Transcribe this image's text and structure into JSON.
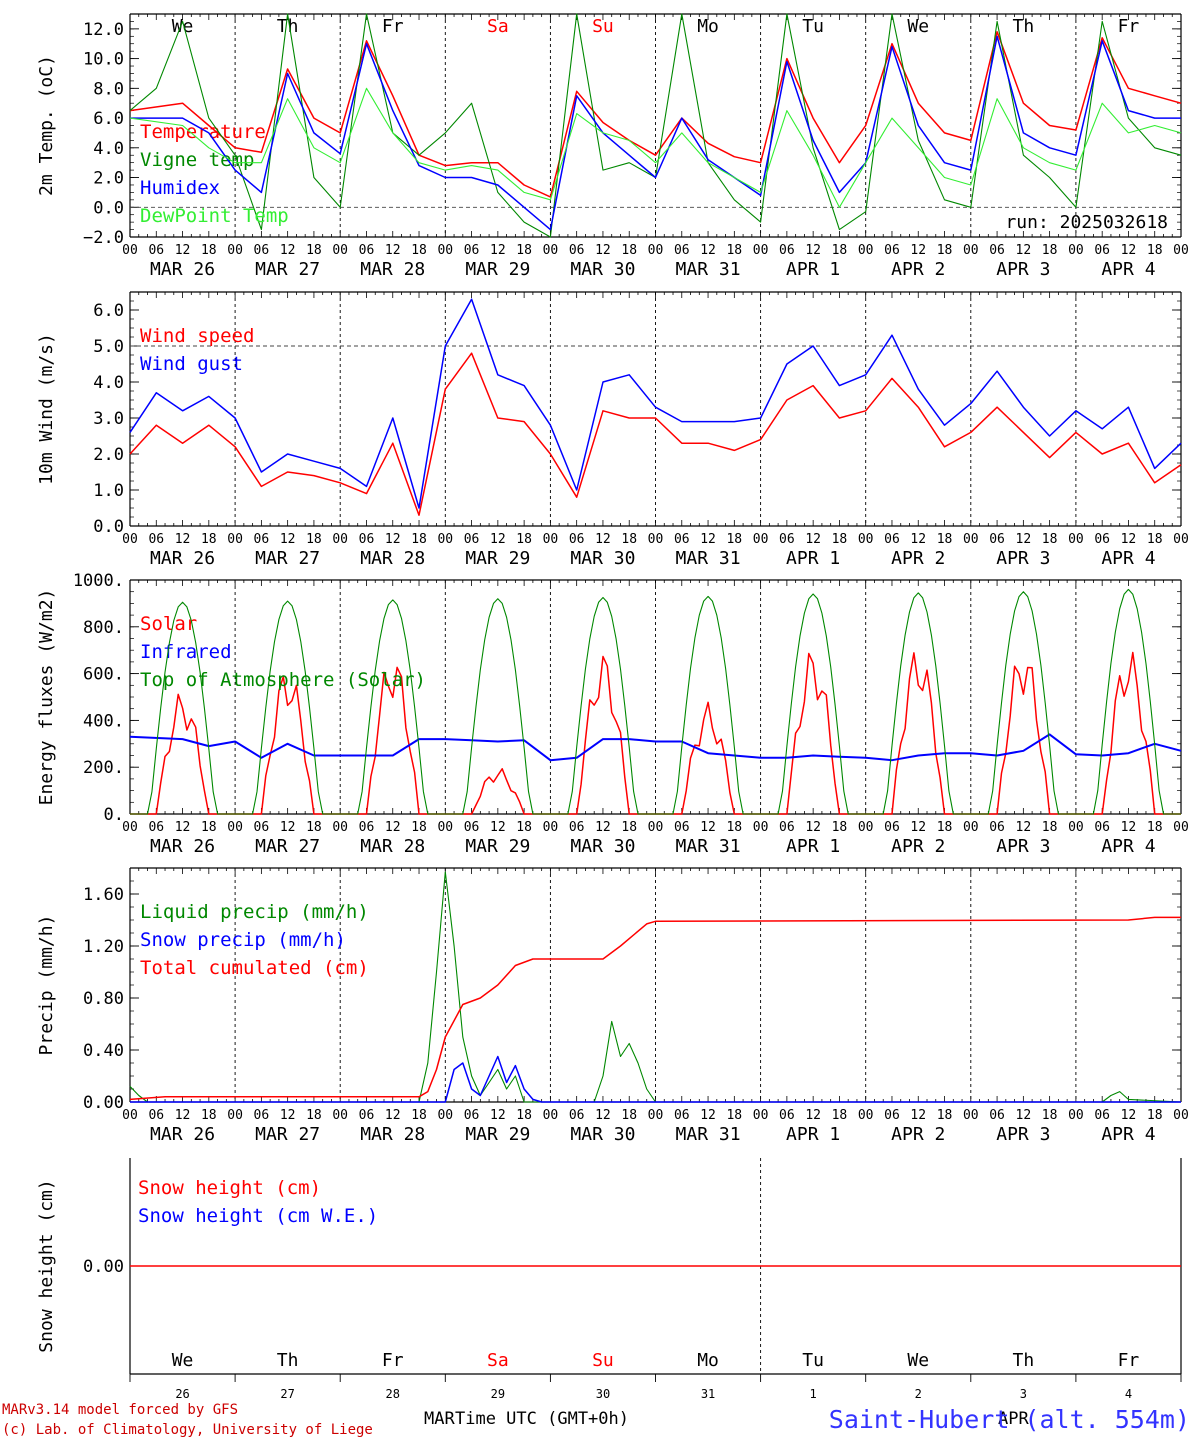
{
  "meta": {
    "run": "run: 2025032618",
    "credit_line1": "MARv3.14 model forced by GFS",
    "credit_line2": "(c) Lab. of Climatology, University of Liege",
    "station": "Saint-Hubert (alt. 554m)",
    "xlabel": "Time UTC (GMT+0h)",
    "month_overlap_label": "MAR",
    "month_overlap_label2": "APR"
  },
  "time_axis": {
    "hour_ticks": [
      "00",
      "06",
      "12",
      "18"
    ],
    "days": [
      "MAR 26",
      "MAR 27",
      "MAR 28",
      "MAR 29",
      "MAR 30",
      "MAR 31",
      "APR  1",
      "APR  2",
      "APR  3",
      "APR  4"
    ],
    "weekdays": [
      "We",
      "Th",
      "Fr",
      "Sa",
      "Su",
      "Mo",
      "Tu",
      "We",
      "Th",
      "Fr"
    ],
    "weekend_flags": [
      false,
      false,
      false,
      true,
      true,
      false,
      false,
      false,
      false,
      false
    ],
    "day_numbers": [
      "26",
      "27",
      "28",
      "29",
      "30",
      "31",
      "1",
      "2",
      "3",
      "4"
    ],
    "x_range_hours": [
      0,
      240
    ]
  },
  "colors": {
    "red": "#ff0000",
    "green": "#008800",
    "blue": "#0000ff",
    "lightgreen": "#33ee33",
    "axis": "#000000",
    "weekday": "#000000",
    "weekend": "#ff0000",
    "station": "#3333ff",
    "credit": "#cc0000"
  },
  "chart_data": [
    {
      "id": "temp",
      "type": "line",
      "ylabel": "2m Temp. (oC)",
      "ylim": [
        -2,
        13
      ],
      "yticks": [
        -2,
        0,
        2,
        4,
        6,
        8,
        10,
        12
      ],
      "ytick_labels": [
        "−2.0",
        "0.0",
        "2.0",
        "4.0",
        "6.0",
        "8.0",
        "10.0",
        "12.0"
      ],
      "ref_line": 0,
      "series": [
        {
          "name": "Temperature",
          "color": "red",
          "x": [
            0,
            12,
            18,
            24,
            30,
            36,
            42,
            48,
            54,
            60,
            66,
            72,
            78,
            84,
            90,
            96,
            102,
            108,
            114,
            120,
            126,
            132,
            138,
            144,
            150,
            156,
            162,
            168,
            174,
            180,
            186,
            192,
            198,
            204,
            210,
            216,
            222,
            228,
            234,
            240
          ],
          "y": [
            6.5,
            7.0,
            5.5,
            4.0,
            3.7,
            9.3,
            6.0,
            5.0,
            11.2,
            7.5,
            3.5,
            2.8,
            3.0,
            3.0,
            1.5,
            0.7,
            7.8,
            5.7,
            4.5,
            3.5,
            6.0,
            4.3,
            3.4,
            3.0,
            10.0,
            6.0,
            3.0,
            5.5,
            11.0,
            7.0,
            5.0,
            4.5,
            11.8,
            7.0,
            5.5,
            5.2,
            11.4,
            8.0,
            7.5,
            7.0
          ]
        },
        {
          "name": "Vigne temp",
          "color": "green",
          "x": [
            0,
            6,
            12,
            18,
            24,
            30,
            36,
            42,
            48,
            54,
            60,
            66,
            72,
            78,
            84,
            90,
            96,
            102,
            108,
            114,
            120,
            126,
            132,
            138,
            144,
            150,
            156,
            162,
            168,
            174,
            180,
            186,
            192,
            198,
            204,
            210,
            216,
            222,
            228,
            234,
            240
          ],
          "y": [
            6.5,
            8.0,
            12.5,
            6.0,
            3.5,
            -1.5,
            13.0,
            2.0,
            0.0,
            13.0,
            5.0,
            3.5,
            5.0,
            7.0,
            1.0,
            -1.0,
            -2.0,
            13.0,
            2.5,
            3.0,
            2.0,
            13.0,
            3.0,
            0.5,
            -1.0,
            13.0,
            4.0,
            -1.5,
            -0.3,
            13.0,
            4.5,
            0.5,
            0.0,
            12.5,
            3.5,
            2.0,
            0.0,
            12.5,
            6.0,
            4.0,
            3.5
          ]
        },
        {
          "name": "Humidex",
          "color": "blue",
          "x": [
            0,
            12,
            18,
            24,
            30,
            36,
            42,
            48,
            54,
            60,
            66,
            72,
            78,
            84,
            90,
            96,
            102,
            108,
            114,
            120,
            126,
            132,
            138,
            144,
            150,
            156,
            162,
            168,
            174,
            180,
            186,
            192,
            198,
            204,
            210,
            216,
            222,
            228,
            234,
            240
          ],
          "y": [
            6.0,
            6.0,
            5.0,
            2.5,
            1.0,
            9.0,
            5.0,
            3.6,
            11.0,
            6.5,
            2.8,
            2.0,
            2.0,
            1.5,
            0.0,
            -1.5,
            7.5,
            5.0,
            3.5,
            2.0,
            6.0,
            3.2,
            2.0,
            0.8,
            9.8,
            4.5,
            1.0,
            3.0,
            10.8,
            5.5,
            3.0,
            2.5,
            11.5,
            5.0,
            4.0,
            3.5,
            11.2,
            6.5,
            6.0,
            6.0
          ]
        },
        {
          "name": "DewPoint Temp",
          "color": "lightgreen",
          "x": [
            0,
            12,
            18,
            24,
            30,
            36,
            42,
            48,
            54,
            60,
            66,
            72,
            78,
            84,
            90,
            96,
            102,
            108,
            114,
            120,
            126,
            132,
            138,
            144,
            150,
            156,
            162,
            168,
            174,
            180,
            186,
            192,
            198,
            204,
            210,
            216,
            222,
            228,
            234,
            240
          ],
          "y": [
            6.0,
            5.5,
            4.0,
            3.0,
            3.0,
            7.3,
            4.0,
            3.0,
            8.0,
            5.0,
            3.0,
            2.5,
            2.8,
            2.5,
            1.0,
            0.5,
            6.3,
            5.0,
            4.5,
            3.0,
            5.0,
            3.0,
            2.0,
            1.0,
            6.5,
            3.5,
            0.0,
            3.0,
            6.0,
            4.0,
            2.0,
            1.5,
            7.3,
            4.0,
            3.0,
            2.5,
            7.0,
            5.0,
            5.5,
            5.0
          ]
        }
      ]
    },
    {
      "id": "wind",
      "type": "line",
      "ylabel": "10m Wind (m/s)",
      "ylim": [
        0,
        6.5
      ],
      "yticks": [
        0,
        1,
        2,
        3,
        4,
        5,
        6
      ],
      "ytick_labels": [
        "0.0",
        "1.0",
        "2.0",
        "3.0",
        "4.0",
        "5.0",
        "6.0"
      ],
      "ref_line": 5,
      "series": [
        {
          "name": "Wind speed",
          "color": "red",
          "x": [
            0,
            6,
            12,
            18,
            24,
            30,
            36,
            42,
            48,
            54,
            60,
            66,
            72,
            78,
            84,
            90,
            96,
            102,
            108,
            114,
            120,
            126,
            132,
            138,
            144,
            150,
            156,
            162,
            168,
            174,
            180,
            186,
            192,
            198,
            204,
            210,
            216,
            222,
            228,
            234,
            240
          ],
          "y": [
            2.0,
            2.8,
            2.3,
            2.8,
            2.2,
            1.1,
            1.5,
            1.4,
            1.2,
            0.9,
            2.3,
            0.3,
            3.8,
            4.8,
            3.0,
            2.9,
            2.0,
            0.8,
            3.2,
            3.0,
            3.0,
            2.3,
            2.3,
            2.1,
            2.4,
            3.5,
            3.9,
            3.0,
            3.2,
            4.1,
            3.3,
            2.2,
            2.6,
            3.3,
            2.6,
            1.9,
            2.6,
            2.0,
            2.3,
            1.2,
            1.7
          ]
        },
        {
          "name": "Wind gust",
          "color": "blue",
          "x": [
            0,
            6,
            12,
            18,
            24,
            30,
            36,
            42,
            48,
            54,
            60,
            66,
            72,
            78,
            84,
            90,
            96,
            102,
            108,
            114,
            120,
            126,
            132,
            138,
            144,
            150,
            156,
            162,
            168,
            174,
            180,
            186,
            192,
            198,
            204,
            210,
            216,
            222,
            228,
            234,
            240
          ],
          "y": [
            2.6,
            3.7,
            3.2,
            3.6,
            3.0,
            1.5,
            2.0,
            1.8,
            1.6,
            1.1,
            3.0,
            0.5,
            5.0,
            6.3,
            4.2,
            3.9,
            2.8,
            1.0,
            4.0,
            4.2,
            3.3,
            2.9,
            2.9,
            2.9,
            3.0,
            4.5,
            5.0,
            3.9,
            4.2,
            5.3,
            3.8,
            2.8,
            3.4,
            4.3,
            3.3,
            2.5,
            3.2,
            2.7,
            3.3,
            1.6,
            2.3
          ]
        }
      ]
    },
    {
      "id": "energy",
      "type": "line",
      "ylabel": "Energy fluxes (W/m2)",
      "ylim": [
        0,
        1000
      ],
      "yticks": [
        0,
        200,
        400,
        600,
        800,
        1000
      ],
      "ytick_labels": [
        "0.",
        "200.",
        "400.",
        "600.",
        "800.",
        "1000."
      ],
      "series": [
        {
          "name": "Solar",
          "color": "red",
          "daily_peaks": [
            530,
            640,
            700,
            200,
            700,
            480,
            720,
            730,
            730,
            720
          ]
        },
        {
          "name": "Infrared",
          "color": "blue",
          "x": [
            0,
            12,
            18,
            24,
            30,
            36,
            42,
            48,
            54,
            60,
            66,
            72,
            78,
            84,
            90,
            96,
            102,
            108,
            114,
            120,
            126,
            132,
            138,
            144,
            150,
            156,
            162,
            168,
            174,
            180,
            186,
            192,
            198,
            204,
            210,
            216,
            222,
            228,
            234,
            240
          ],
          "y": [
            330,
            320,
            290,
            310,
            240,
            300,
            250,
            250,
            250,
            250,
            320,
            320,
            315,
            310,
            315,
            230,
            240,
            320,
            320,
            310,
            310,
            260,
            250,
            240,
            240,
            250,
            245,
            240,
            230,
            250,
            260,
            260,
            250,
            270,
            340,
            255,
            250,
            260,
            300,
            270
          ]
        },
        {
          "name": "Top of Atmosphere (Solar)",
          "color": "green",
          "daily_peaks": [
            905,
            910,
            915,
            920,
            925,
            930,
            940,
            945,
            950,
            960
          ]
        }
      ]
    },
    {
      "id": "precip",
      "type": "line",
      "ylabel": "Precip (mm/h)",
      "ylim": [
        0,
        1.8
      ],
      "yticks": [
        0,
        0.4,
        0.8,
        1.2,
        1.6
      ],
      "ytick_labels": [
        "0.00",
        "0.40",
        "0.80",
        "1.20",
        "1.60"
      ],
      "series": [
        {
          "name": "Liquid precip (mm/h)",
          "color": "green",
          "x": [
            0,
            2,
            4,
            8,
            66,
            68,
            70,
            72,
            74,
            76,
            78,
            80,
            82,
            84,
            86,
            88,
            90,
            96,
            106,
            108,
            110,
            112,
            114,
            116,
            118,
            120,
            222,
            224,
            226,
            228,
            240
          ],
          "y": [
            0.12,
            0.05,
            0.0,
            0.0,
            0.0,
            0.3,
            1.0,
            1.77,
            1.2,
            0.5,
            0.2,
            0.05,
            0.15,
            0.25,
            0.1,
            0.2,
            0.0,
            0.0,
            0.0,
            0.2,
            0.62,
            0.35,
            0.45,
            0.3,
            0.1,
            0.0,
            0.0,
            0.05,
            0.08,
            0.02,
            0.0
          ]
        },
        {
          "name": "Snow precip (mm/h)",
          "color": "blue",
          "x": [
            0,
            70,
            72,
            74,
            76,
            78,
            80,
            82,
            84,
            86,
            88,
            90,
            92,
            94,
            240
          ],
          "y": [
            0,
            0,
            0.0,
            0.25,
            0.3,
            0.1,
            0.05,
            0.2,
            0.35,
            0.15,
            0.28,
            0.1,
            0.02,
            0.0,
            0
          ]
        },
        {
          "name": "Total cumulated (cm)",
          "color": "red",
          "x": [
            0,
            8,
            66,
            68,
            70,
            72,
            76,
            80,
            84,
            88,
            92,
            96,
            102,
            108,
            112,
            118,
            120,
            228,
            234,
            240
          ],
          "y": [
            0.02,
            0.04,
            0.04,
            0.08,
            0.25,
            0.5,
            0.75,
            0.8,
            0.9,
            1.05,
            1.1,
            1.1,
            1.1,
            1.1,
            1.2,
            1.37,
            1.39,
            1.4,
            1.42,
            1.42
          ]
        }
      ]
    },
    {
      "id": "snow",
      "type": "line",
      "ylabel": "Snow height (cm)",
      "ylim": [
        -1,
        1
      ],
      "yticks": [
        0
      ],
      "ytick_labels": [
        "0.00"
      ],
      "series": [
        {
          "name": "Snow height (cm)",
          "color": "red",
          "x": [
            0,
            240
          ],
          "y": [
            0,
            0
          ]
        },
        {
          "name": "Snow height (cm W.E.)",
          "color": "blue",
          "x": [],
          "y": []
        }
      ]
    }
  ]
}
